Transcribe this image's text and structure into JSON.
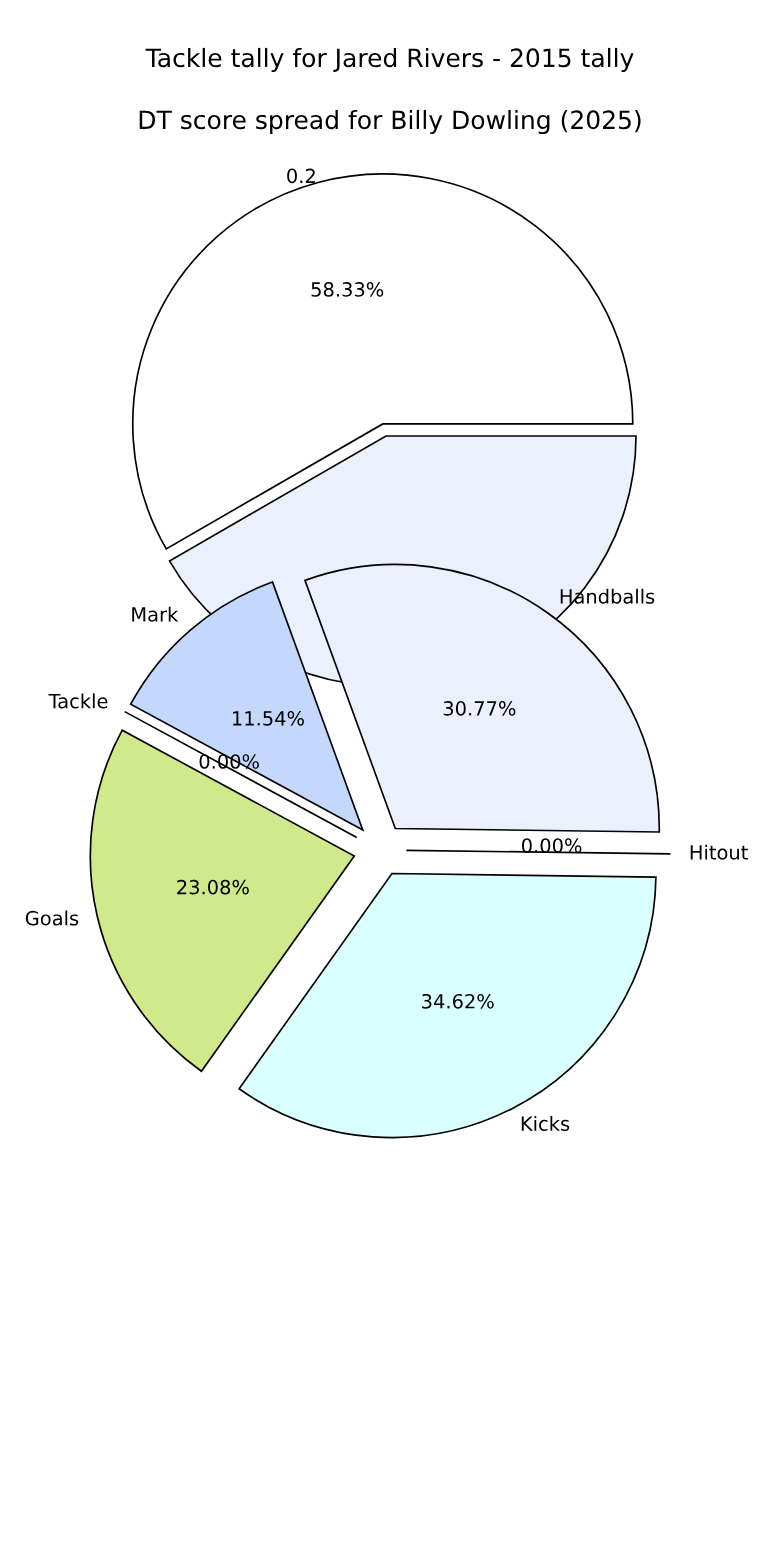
{
  "chart_data": [
    {
      "type": "pie",
      "title": "Tackle tally for Jared Rivers - 2015 tally",
      "categories": [
        "0.2",
        null
      ],
      "values": [
        58.33,
        41.67
      ],
      "colors": [
        "#ffffff",
        "#eaf1fd"
      ],
      "value_labels": [
        "58.33%",
        null
      ]
    },
    {
      "type": "pie",
      "title": "DT score spread for Billy Dowling (2025)",
      "categories": [
        "Handballs",
        "Hitout",
        "Kicks",
        "Goals",
        "Tackle",
        "Mark"
      ],
      "values": [
        30.77,
        0.0,
        34.62,
        23.08,
        0.0,
        11.54
      ],
      "colors": [
        "#eaf1fd",
        "#e0f0ff",
        "#d9ffff",
        "#d0e98a",
        "#ffe0e0",
        "#c4d8fe"
      ],
      "value_labels": [
        "30.77%",
        "0.00%",
        "34.62%",
        "23.08%",
        "0.00%",
        "11.54%"
      ]
    }
  ]
}
